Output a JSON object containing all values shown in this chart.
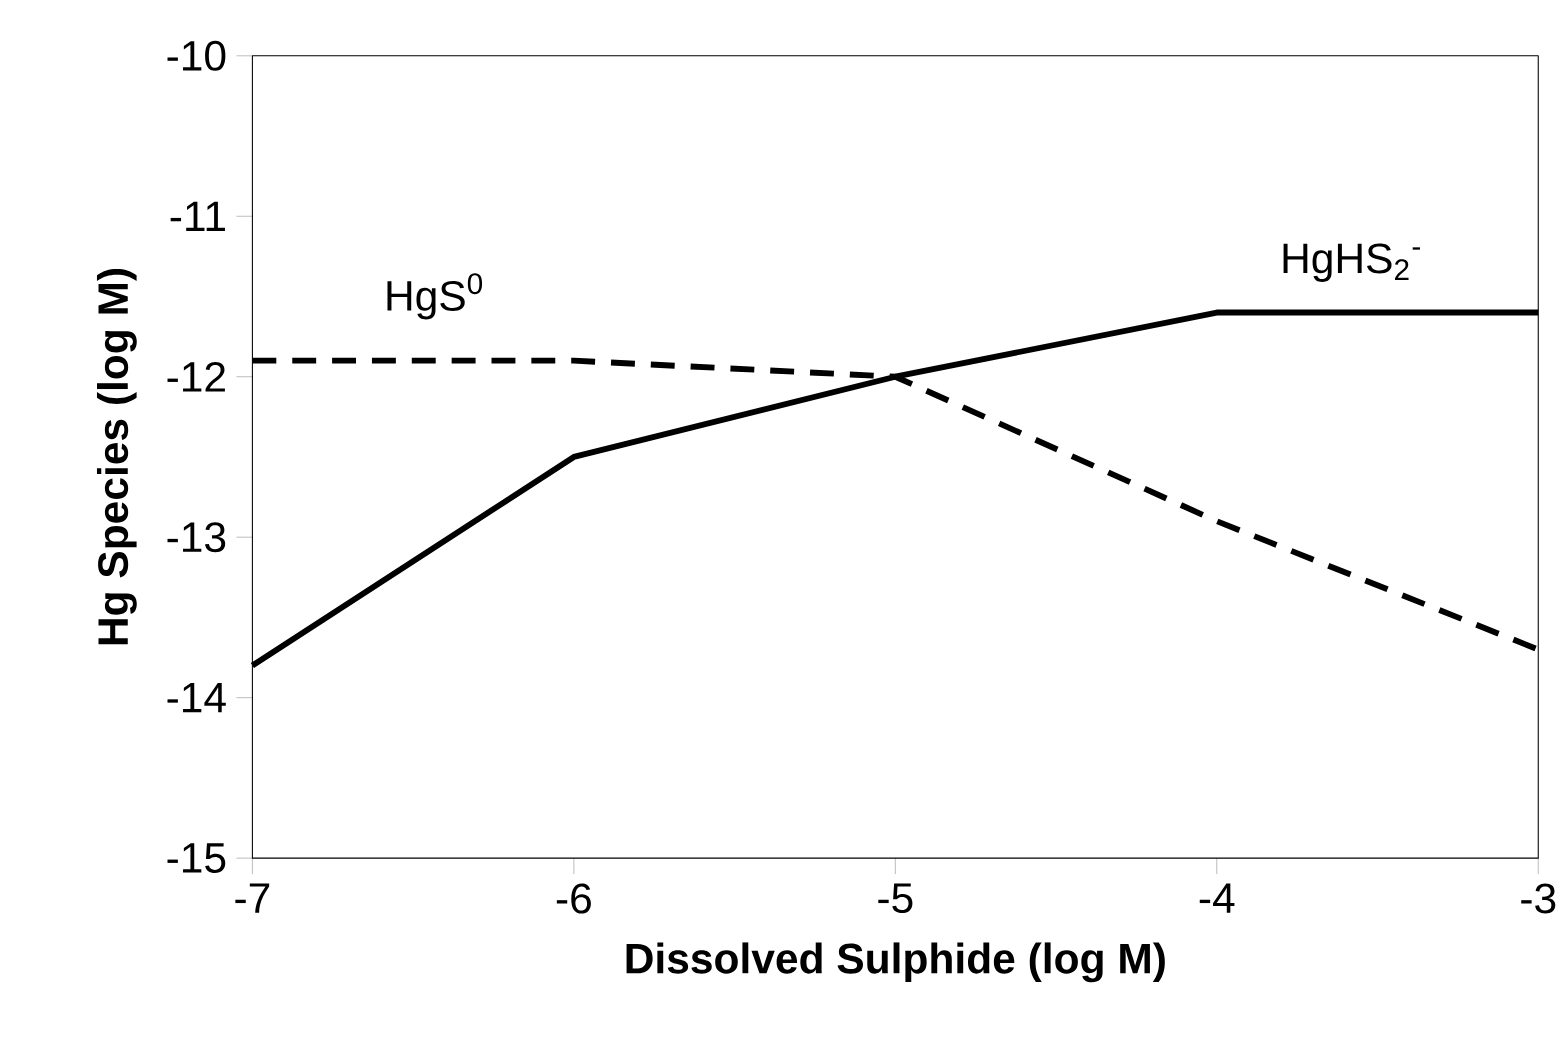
{
  "chart_data": {
    "type": "line",
    "xlabel": "Dissolved Sulphide (log M)",
    "ylabel": "Hg Species (log M)",
    "x": [
      -7,
      -6,
      -5,
      -4,
      -3
    ],
    "xlim": [
      -7,
      -3
    ],
    "ylim": [
      -15,
      -10
    ],
    "xticks": [
      -7,
      -6,
      -5,
      -4,
      -3
    ],
    "yticks": [
      -15,
      -14,
      -13,
      -12,
      -11,
      -10
    ],
    "grid": false,
    "legend": false,
    "marker": "none",
    "series": [
      {
        "name": "HgHS$_{2}$$^{-}$",
        "color": "#000000",
        "line_style": "solid",
        "values": [
          -13.8,
          -12.5,
          -12.0,
          -11.6,
          -11.6
        ]
      },
      {
        "name": "HgS$^{0}$",
        "color": "#000000",
        "line_style": "dashed",
        "values": [
          -11.9,
          -11.9,
          -12.0,
          -12.9,
          -13.7
        ]
      }
    ]
  }
}
